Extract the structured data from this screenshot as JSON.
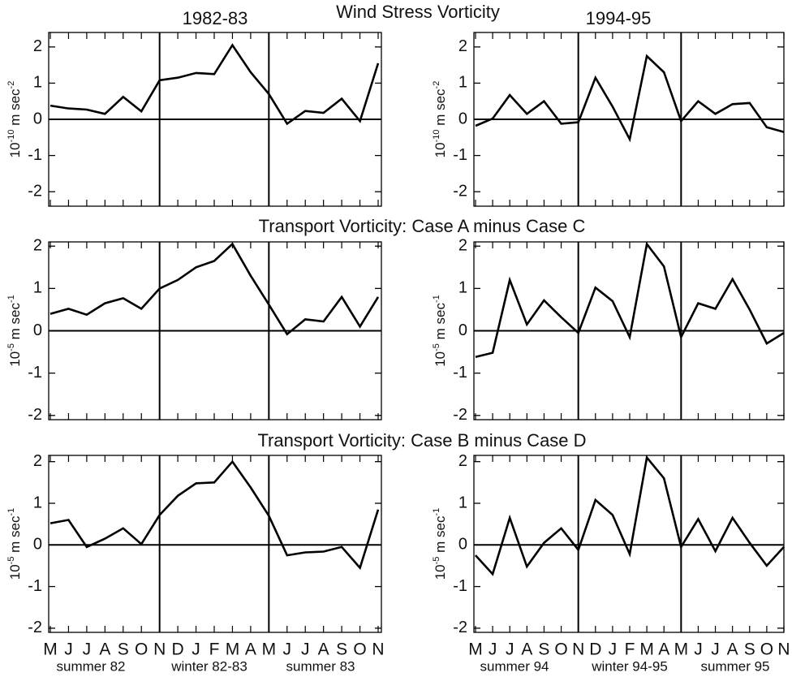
{
  "figure": {
    "column_titles": [
      "1982-83",
      "1994-95"
    ],
    "row_titles": [
      "Wind Stress Vorticity",
      "Transport Vorticity: Case A minus Case C",
      "Transport Vorticity: Case B minus Case D"
    ],
    "seasons": [
      [
        "summer 82",
        "winter 82-83",
        "summer 83"
      ],
      [
        "summer 94",
        "winter 94-95",
        "summer 95"
      ]
    ]
  },
  "chart_data": [
    {
      "type": "line",
      "color": "#000000",
      "y_label": [
        "10",
        "-10",
        " m sec",
        "-2"
      ],
      "values": [
        0.38,
        0.3,
        0.27,
        0.15,
        0.62,
        0.22,
        1.08,
        1.15,
        1.28,
        1.25,
        2.05,
        1.3,
        0.7,
        -0.12,
        0.23,
        0.18,
        0.57,
        -0.05,
        1.55
      ],
      "ylim": [
        -2.4,
        2.4
      ],
      "yticks": [
        -2,
        -1,
        0,
        1,
        2
      ]
    },
    {
      "type": "line",
      "color": "#000000",
      "y_label": [
        "10",
        "-10",
        " m sec",
        "-2"
      ],
      "values": [
        -0.18,
        0.02,
        0.67,
        0.15,
        0.5,
        -0.12,
        -0.08,
        1.15,
        0.35,
        -0.55,
        1.75,
        1.3,
        -0.05,
        0.5,
        0.15,
        0.42,
        0.45,
        -0.22,
        -0.35
      ],
      "ylim": [
        -2.4,
        2.4
      ],
      "yticks": [
        -2,
        -1,
        0,
        1,
        2
      ]
    },
    {
      "type": "line",
      "color": "#000000",
      "y_label": [
        "10",
        "-5",
        " m sec",
        "-1"
      ],
      "values": [
        0.4,
        0.52,
        0.38,
        0.65,
        0.77,
        0.52,
        1.0,
        1.2,
        1.5,
        1.65,
        2.05,
        1.3,
        0.62,
        -0.08,
        0.27,
        0.22,
        0.8,
        0.1,
        0.8
      ],
      "ylim": [
        -2.1,
        2.1
      ],
      "yticks": [
        -2,
        -1,
        0,
        1,
        2
      ]
    },
    {
      "type": "line",
      "color": "#000000",
      "y_label": [
        "10",
        "-5",
        " m sec",
        "-1"
      ],
      "values": [
        -0.62,
        -0.52,
        1.2,
        0.15,
        0.72,
        0.32,
        -0.05,
        1.02,
        0.7,
        -0.15,
        2.05,
        1.52,
        -0.15,
        0.65,
        0.52,
        1.22,
        0.5,
        -0.3,
        -0.05
      ],
      "ylim": [
        -2.1,
        2.1
      ],
      "yticks": [
        -2,
        -1,
        0,
        1,
        2
      ]
    },
    {
      "type": "line",
      "color": "#000000",
      "y_label": [
        "10",
        "-5",
        " m sec",
        "-1"
      ],
      "categories": [
        "M",
        "J",
        "J",
        "A",
        "S",
        "O",
        "N",
        "D",
        "J",
        "F",
        "M",
        "A",
        "M",
        "J",
        "J",
        "A",
        "S",
        "O",
        "N"
      ],
      "values": [
        0.52,
        0.6,
        -0.05,
        0.15,
        0.4,
        0.02,
        0.72,
        1.18,
        1.48,
        1.5,
        2.0,
        1.38,
        0.7,
        -0.25,
        -0.18,
        -0.16,
        -0.05,
        -0.55,
        0.85
      ],
      "ylim": [
        -2.1,
        2.15
      ],
      "yticks": [
        -2,
        -1,
        0,
        1,
        2
      ]
    },
    {
      "type": "line",
      "color": "#000000",
      "y_label": [
        "10",
        "-5",
        " m sec",
        "-1"
      ],
      "categories": [
        "M",
        "J",
        "J",
        "A",
        "S",
        "O",
        "N",
        "D",
        "J",
        "F",
        "M",
        "A",
        "M",
        "J",
        "J",
        "A",
        "S",
        "O",
        "N"
      ],
      "values": [
        -0.25,
        -0.7,
        0.65,
        -0.52,
        0.05,
        0.4,
        -0.12,
        1.08,
        0.72,
        -0.22,
        2.1,
        1.6,
        -0.05,
        0.62,
        -0.15,
        0.65,
        0.05,
        -0.5,
        -0.05
      ],
      "ylim": [
        -2.1,
        2.15
      ],
      "yticks": [
        -2,
        -1,
        0,
        1,
        2
      ]
    }
  ]
}
